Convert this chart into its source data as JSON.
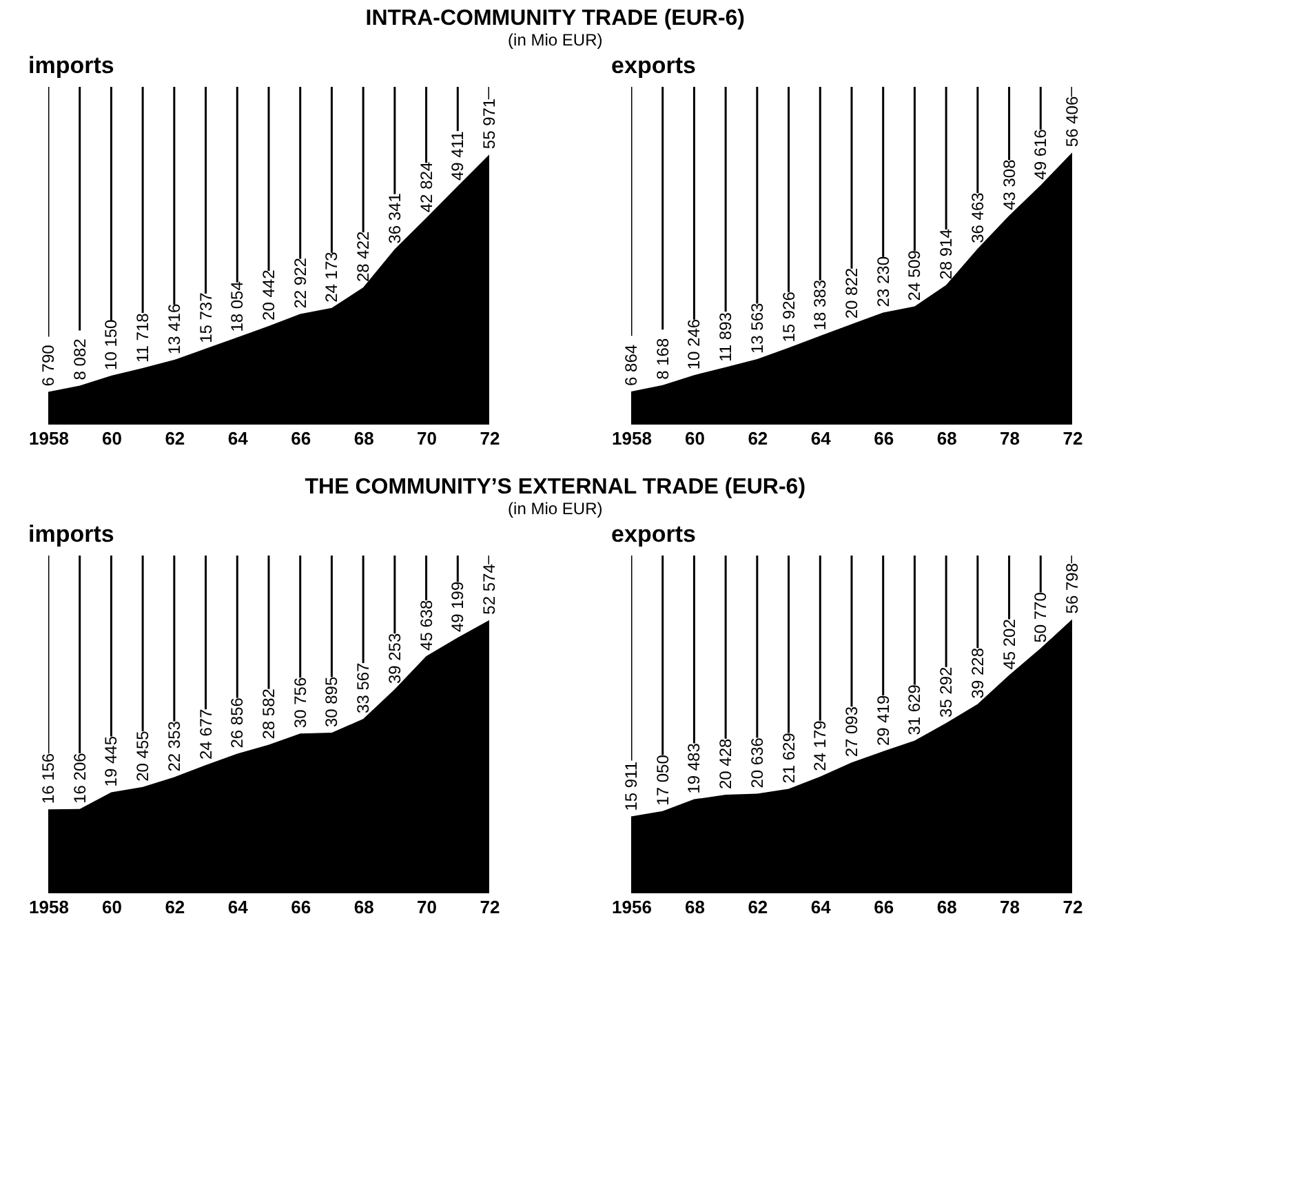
{
  "chart_data": [
    {
      "type": "area",
      "title": "imports",
      "annotations": [
        "INTRA-COMMUNITY TRADE (EUR-6)",
        "(in Mio EUR)"
      ],
      "categories": [
        "1958",
        null,
        "60",
        null,
        "62",
        null,
        "64",
        null,
        "66",
        null,
        "68",
        null,
        "70",
        null,
        "72"
      ],
      "series": [
        {
          "color": "#000000",
          "values": [
            6790,
            8082,
            10150,
            11718,
            13416,
            15737,
            18054,
            20442,
            22922,
            24173,
            28422,
            36341,
            42824,
            49411,
            55971
          ],
          "value_labels": [
            "6 790",
            "8 082",
            "10 150",
            "11 718",
            "13 416",
            "15 737",
            "18 054",
            "20 442",
            "22 922",
            "24 173",
            "28 422",
            "36 341",
            "42 824",
            "49 411",
            "55 971"
          ]
        }
      ],
      "grid": "x",
      "tick_labels": "x"
    },
    {
      "type": "area",
      "title": "exports",
      "categories": [
        "1958",
        null,
        "60",
        null,
        "62",
        null,
        "64",
        null,
        "66",
        null,
        "68",
        null,
        "78",
        null,
        "72"
      ],
      "series": [
        {
          "color": "#000000",
          "values": [
            6864,
            8168,
            10246,
            11893,
            13563,
            15926,
            18383,
            20822,
            23230,
            24509,
            28914,
            36463,
            43308,
            49616,
            56406
          ],
          "value_labels": [
            "6 864",
            "8 168",
            "10 246",
            "11 893",
            "13 563",
            "15 926",
            "18 383",
            "20 822",
            "23 230",
            "24 509",
            "28 914",
            "36 463",
            "43 308",
            "49 616",
            "56 406"
          ]
        }
      ],
      "grid": "x",
      "tick_labels": "x"
    },
    {
      "type": "area",
      "title": "imports",
      "annotations": [
        "THE COMMUNITY’S EXTERNAL TRADE (EUR-6)",
        "(in Mio EUR)"
      ],
      "categories": [
        "1958",
        null,
        "60",
        null,
        "62",
        null,
        "64",
        null,
        "66",
        null,
        "68",
        null,
        "70",
        null,
        "72"
      ],
      "series": [
        {
          "color": "#000000",
          "values": [
            16156,
            16206,
            19445,
            20455,
            22353,
            24677,
            26856,
            28582,
            30756,
            30895,
            33567,
            39253,
            45638,
            49199,
            52574
          ],
          "value_labels": [
            "16 156",
            "16 206",
            "19 445",
            "20 455",
            "22 353",
            "24 677",
            "26 856",
            "28 582",
            "30 756",
            "30 895",
            "33 567",
            "39 253",
            "45 638",
            "49 199",
            "52 574"
          ]
        }
      ],
      "grid": "x",
      "tick_labels": "x"
    },
    {
      "type": "area",
      "title": "exports",
      "categories": [
        "1956",
        null,
        "68",
        null,
        "62",
        null,
        "64",
        null,
        "66",
        null,
        "68",
        null,
        "78",
        null,
        "72"
      ],
      "series": [
        {
          "color": "#000000",
          "values": [
            15911,
            17050,
            19483,
            20428,
            20636,
            21629,
            24179,
            27093,
            29419,
            31629,
            35292,
            39228,
            45202,
            50770,
            56798
          ],
          "value_labels": [
            "15 911",
            "17 050",
            "19 483",
            "20 428",
            "20 636",
            "21 629",
            "24 179",
            "27 093",
            "29 419",
            "31 629",
            "35 292",
            "39 228",
            "45 202",
            "50 770",
            "56 798"
          ]
        }
      ],
      "grid": "x",
      "tick_labels": "x"
    }
  ]
}
